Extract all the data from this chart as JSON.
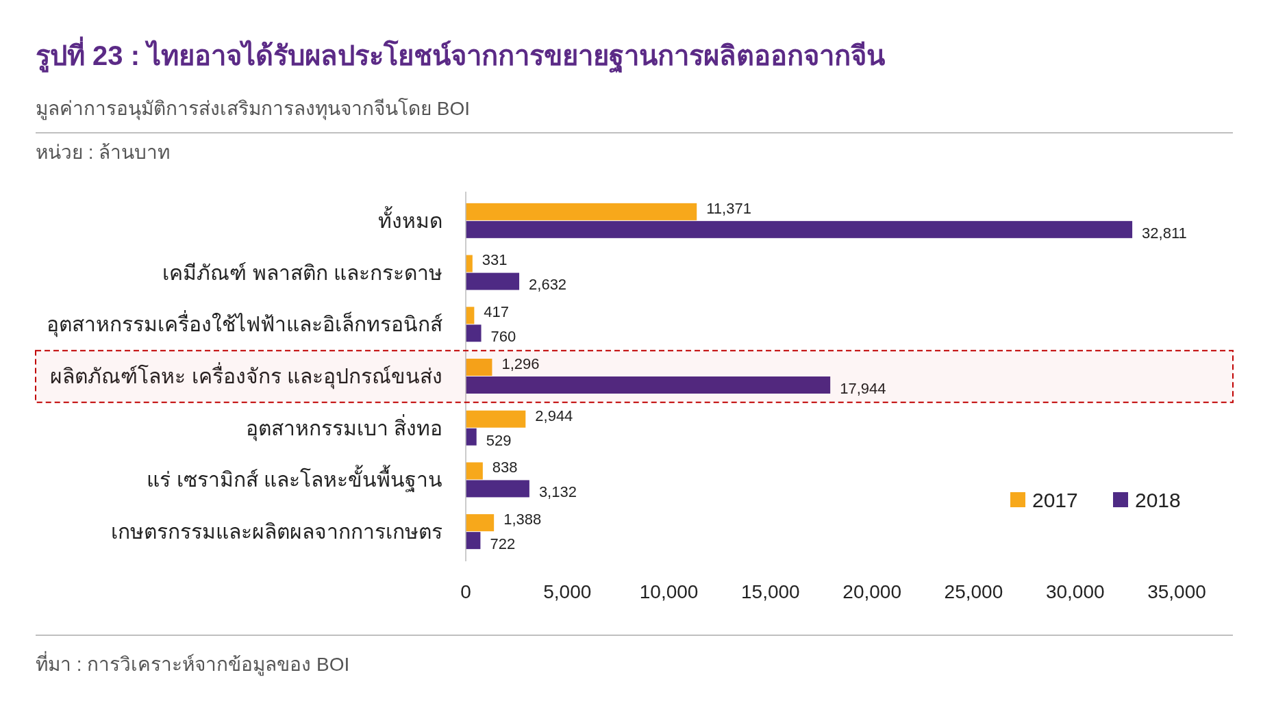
{
  "chart_data": {
    "type": "bar",
    "orientation": "horizontal",
    "title": "รูปที่ 23 : ไทยอาจได้รับผลประโยชน์จากการขยายฐานการผลิตออกจากจีน",
    "subtitle": "มูลค่าการอนุมัติการส่งเสริมการลงทุนจากจีนโดย BOI",
    "annotations": [
      "หน่วย : ล้านบาท",
      "ที่มา : การวิเคราะห์จากข้อมูลของ BOI"
    ],
    "categories": [
      "ทั้งหมด",
      "เคมีภัณฑ์ พลาสติก และกระดาษ",
      "อุตสาหกรรมเครื่องใช้ไฟฟ้าและอิเล็กทรอนิกส์",
      "ผลิตภัณฑ์โลหะ เครื่องจักร และอุปกรณ์ขนส่ง",
      "อุตสาหกรรมเบา สิ่งทอ",
      "แร่ เซรามิกส์ และโลหะขั้นพื้นฐาน",
      "เกษตรกรรมและผลิตผลจากการเกษตร"
    ],
    "series": [
      {
        "name": "2017",
        "color": "#f7a81b",
        "values": [
          11371,
          331,
          417,
          1296,
          2944,
          838,
          1388
        ],
        "value_labels": [
          "11,371",
          "331",
          "417",
          "1,296",
          "2,944",
          "838",
          "1,388"
        ]
      },
      {
        "name": "2018",
        "color": "#4e2a84",
        "values": [
          32811,
          2632,
          760,
          17944,
          529,
          3132,
          722
        ],
        "value_labels": [
          "32,811",
          "2,632",
          "760",
          "17,944",
          "529",
          "3,132",
          "722"
        ]
      }
    ],
    "xlim": [
      0,
      35000
    ],
    "xticks": [
      0,
      {
        "value": 5000,
        "label": "5,000"
      },
      {
        "value": 10000,
        "label": "10,000"
      },
      {
        "value": 15000,
        "label": "15,000"
      },
      {
        "value": 20000,
        "label": "20,000"
      },
      {
        "value": 25000,
        "label": "25,000"
      },
      {
        "value": 30000,
        "label": "30,000"
      },
      {
        "value": 35000,
        "label": "35,000"
      }
    ],
    "bands": [
      {
        "axis": "y",
        "from": "ผลิตภัณฑ์โลหะ เครื่องจักร และอุปกรณ์ขนส่ง",
        "to": "ผลิตภัณฑ์โลหะ เครื่องจักร และอุปกรณ์ขนส่ง",
        "color": "#c00000"
      }
    ],
    "legend": "bottom right",
    "grid": false
  }
}
